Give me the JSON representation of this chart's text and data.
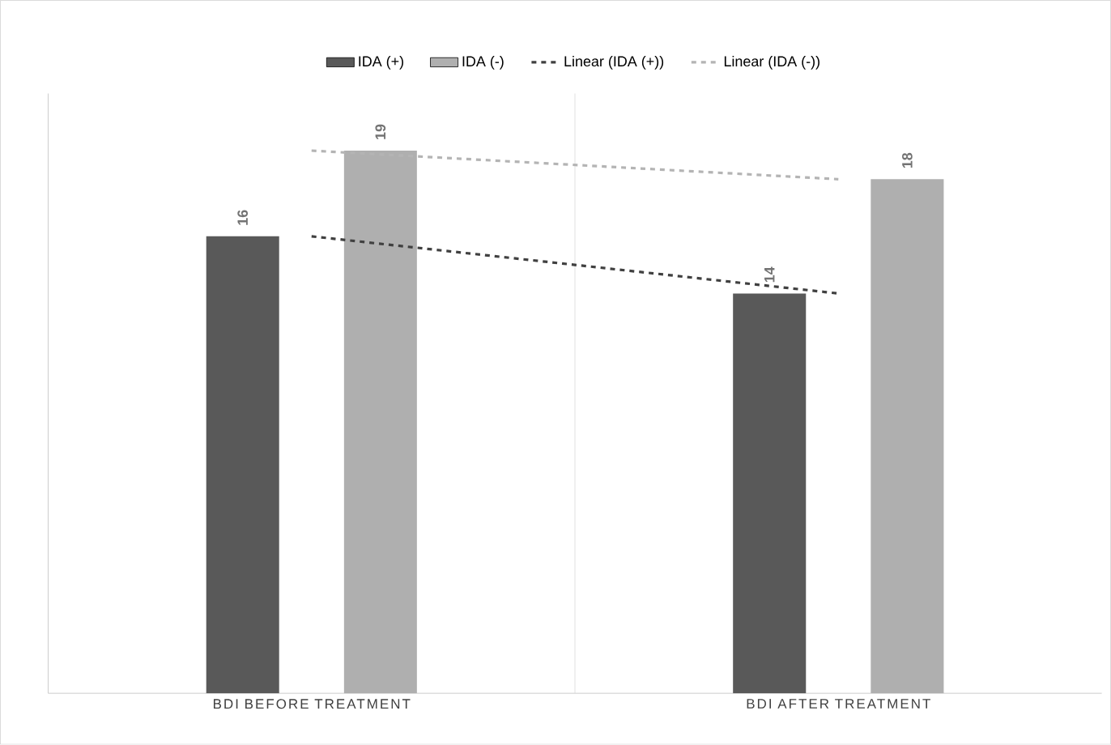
{
  "chart_data": {
    "type": "bar",
    "categories": [
      "BDI BEFORE TREATMENT",
      "BDI AFTER TREATMENT"
    ],
    "series": [
      {
        "name": "IDA (+)",
        "color": "#595959",
        "values": [
          16,
          14
        ],
        "value_labels": [
          "16",
          "14"
        ]
      },
      {
        "name": "IDA (-)",
        "color": "#afafaf",
        "values": [
          19,
          18
        ],
        "value_labels": [
          "19",
          "18"
        ]
      },
      {
        "name": "Linear (IDA (+))",
        "type": "line",
        "line_style": "dashed",
        "color": "#404040",
        "values": [
          16,
          14
        ]
      },
      {
        "name": "Linear (IDA (-))",
        "type": "line",
        "line_style": "dashed",
        "color": "#b4b4b4",
        "values": [
          19,
          18
        ]
      }
    ],
    "tick_labels": "x",
    "legend": "top",
    "grid": "x"
  }
}
